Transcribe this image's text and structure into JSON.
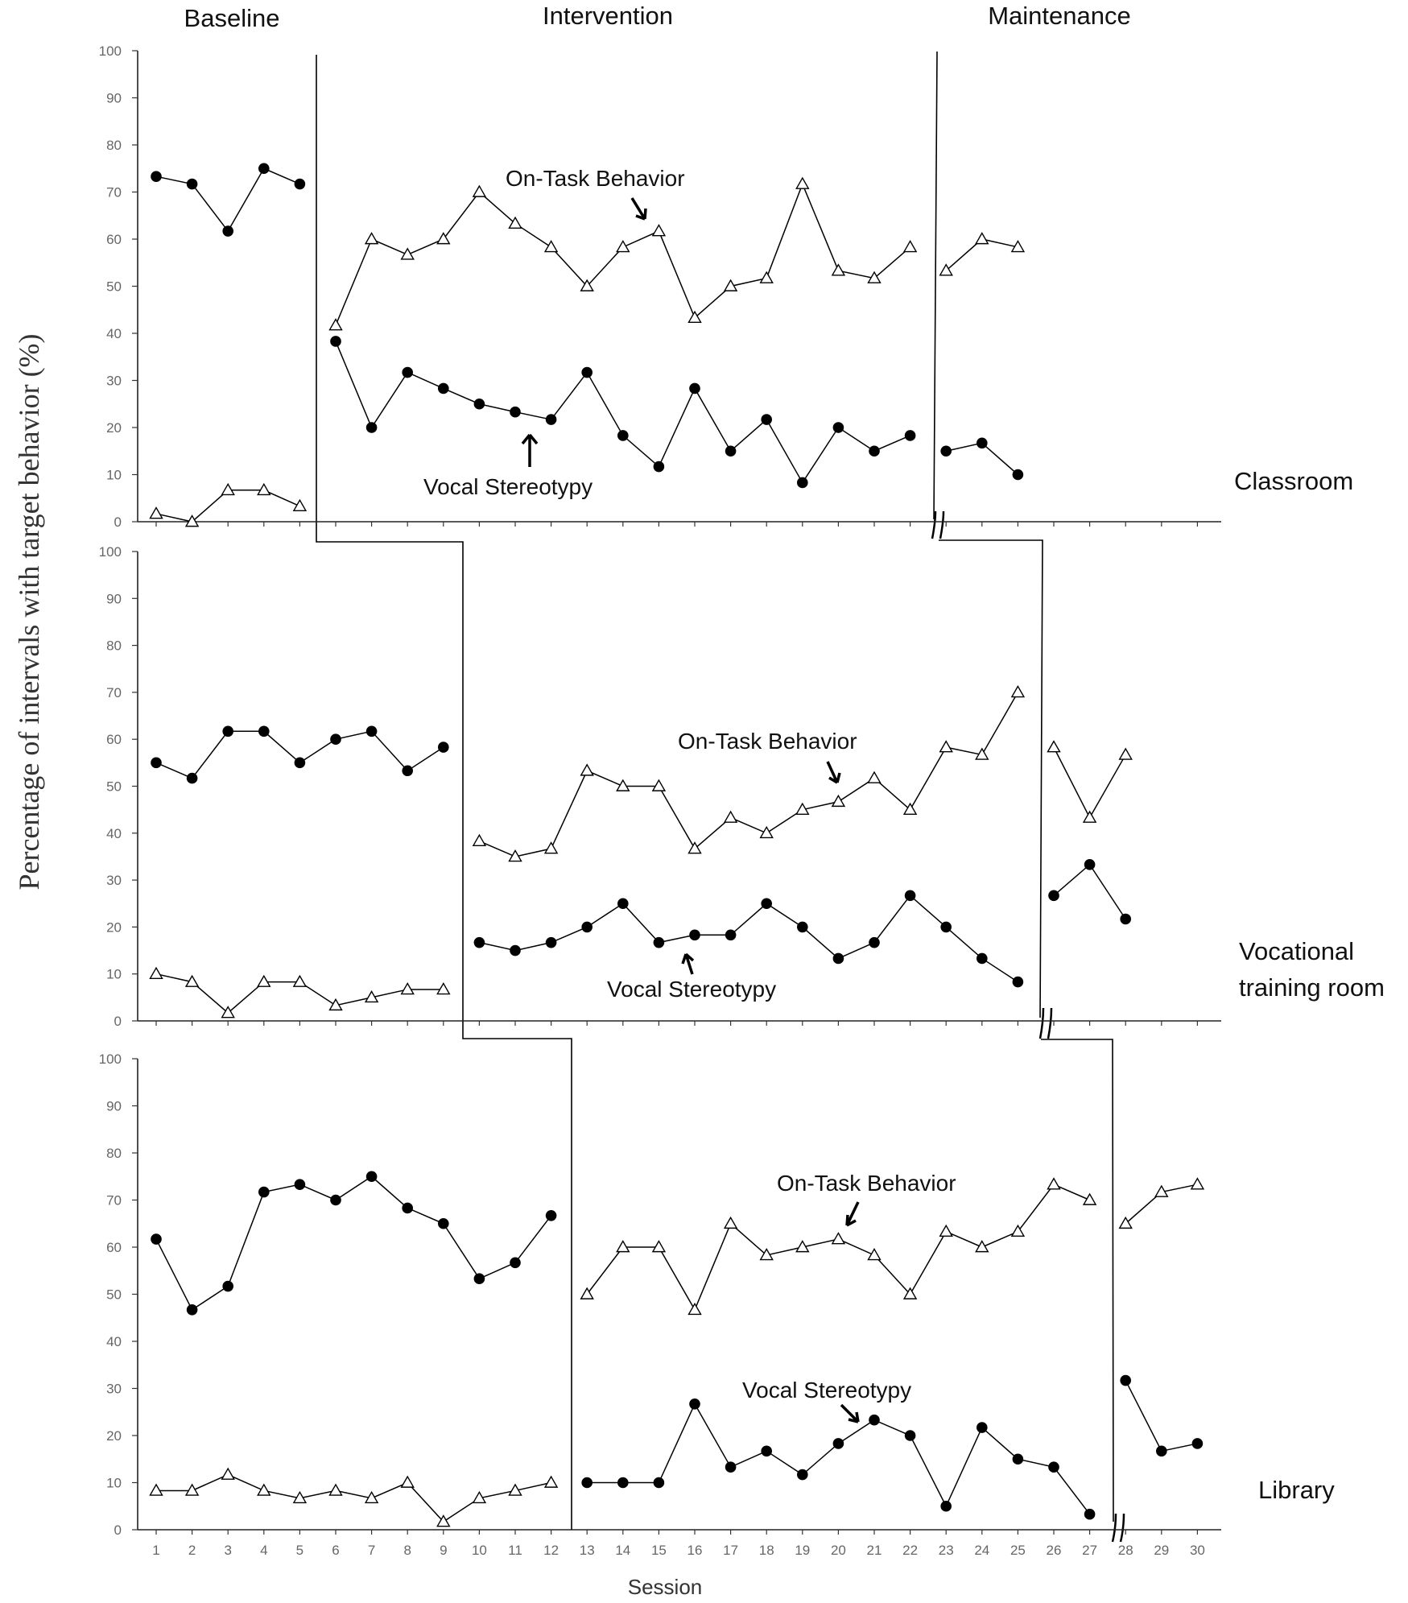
{
  "chart_data": {
    "type": "line",
    "design": "multiple baseline across settings",
    "phase_labels": [
      "Baseline",
      "Intervention",
      "Maintenance"
    ],
    "ylabel": "Percentage of intervals with target behavior (%)",
    "xlabel": "Session",
    "ylim": [
      0,
      100
    ],
    "yticks": [
      "0",
      "10",
      "20",
      "30",
      "40",
      "50",
      "60",
      "70",
      "80",
      "90",
      "100"
    ],
    "xticks": [
      "1",
      "2",
      "3",
      "4",
      "5",
      "6",
      "7",
      "8",
      "9",
      "10",
      "11",
      "12",
      "13",
      "14",
      "15",
      "16",
      "17",
      "18",
      "19",
      "20",
      "21",
      "22",
      "23",
      "24",
      "25",
      "26",
      "27",
      "28",
      "29",
      "30"
    ],
    "panels": [
      {
        "setting": "Classroom",
        "phases": [
          {
            "name": "Baseline",
            "sessions": [
              1,
              5
            ]
          },
          {
            "name": "Intervention",
            "sessions": [
              6,
              22
            ]
          },
          {
            "name": "Maintenance",
            "sessions": [
              23,
              25
            ]
          }
        ],
        "series": [
          {
            "name": "Vocal Stereotypy",
            "marker": "filled-circle",
            "segments": [
              [
                [
                  1,
                  73.3
                ],
                [
                  2,
                  71.7
                ],
                [
                  3,
                  61.7
                ],
                [
                  4,
                  75
                ],
                [
                  5,
                  71.7
                ]
              ],
              [
                [
                  6,
                  38.3
                ],
                [
                  7,
                  20
                ],
                [
                  8,
                  31.7
                ],
                [
                  9,
                  28.3
                ],
                [
                  10,
                  25
                ],
                [
                  11,
                  23.3
                ],
                [
                  12,
                  21.7
                ],
                [
                  13,
                  31.7
                ],
                [
                  14,
                  18.3
                ],
                [
                  15,
                  11.7
                ],
                [
                  16,
                  28.3
                ],
                [
                  17,
                  15
                ],
                [
                  18,
                  21.7
                ],
                [
                  19,
                  8.3
                ],
                [
                  20,
                  20
                ],
                [
                  21,
                  15
                ],
                [
                  22,
                  18.3
                ]
              ],
              [
                [
                  23,
                  15
                ],
                [
                  24,
                  16.7
                ],
                [
                  25,
                  10
                ]
              ]
            ]
          },
          {
            "name": "On-Task Behavior",
            "marker": "open-triangle",
            "segments": [
              [
                [
                  1,
                  1.7
                ],
                [
                  2,
                  0
                ],
                [
                  3,
                  6.7
                ],
                [
                  4,
                  6.7
                ],
                [
                  5,
                  3.3
                ]
              ],
              [
                [
                  6,
                  41.7
                ],
                [
                  7,
                  60
                ],
                [
                  8,
                  56.7
                ],
                [
                  9,
                  60
                ],
                [
                  10,
                  70
                ],
                [
                  11,
                  63.3
                ],
                [
                  12,
                  58.3
                ],
                [
                  13,
                  50
                ],
                [
                  14,
                  58.3
                ],
                [
                  15,
                  61.7
                ],
                [
                  16,
                  43.3
                ],
                [
                  17,
                  50
                ],
                [
                  18,
                  51.7
                ],
                [
                  19,
                  71.7
                ],
                [
                  20,
                  53.3
                ],
                [
                  21,
                  51.7
                ],
                [
                  22,
                  58.3
                ]
              ],
              [
                [
                  23,
                  53.3
                ],
                [
                  24,
                  60
                ],
                [
                  25,
                  58.3
                ]
              ]
            ]
          }
        ],
        "annotations": {
          "on_task": "On-Task Behavior",
          "vocal": "Vocal Stereotypy"
        }
      },
      {
        "setting": "Vocational training room",
        "setting_lines": [
          "Vocational",
          "training room"
        ],
        "phases": [
          {
            "name": "Baseline",
            "sessions": [
              1,
              9
            ]
          },
          {
            "name": "Intervention",
            "sessions": [
              10,
              25
            ]
          },
          {
            "name": "Maintenance",
            "sessions": [
              26,
              28
            ]
          }
        ],
        "series": [
          {
            "name": "Vocal Stereotypy",
            "marker": "filled-circle",
            "segments": [
              [
                [
                  1,
                  55
                ],
                [
                  2,
                  51.7
                ],
                [
                  3,
                  61.7
                ],
                [
                  4,
                  61.7
                ],
                [
                  5,
                  55
                ],
                [
                  6,
                  60
                ],
                [
                  7,
                  61.7
                ],
                [
                  8,
                  53.3
                ],
                [
                  9,
                  58.3
                ]
              ],
              [
                [
                  10,
                  16.7
                ],
                [
                  11,
                  15
                ],
                [
                  12,
                  16.7
                ],
                [
                  13,
                  20
                ],
                [
                  14,
                  25
                ],
                [
                  15,
                  16.7
                ],
                [
                  16,
                  18.3
                ],
                [
                  17,
                  18.3
                ],
                [
                  18,
                  25
                ],
                [
                  19,
                  20
                ],
                [
                  20,
                  13.3
                ],
                [
                  21,
                  16.7
                ],
                [
                  22,
                  26.7
                ],
                [
                  23,
                  20
                ],
                [
                  24,
                  13.3
                ],
                [
                  25,
                  8.3
                ]
              ],
              [
                [
                  26,
                  26.7
                ],
                [
                  27,
                  33.3
                ],
                [
                  28,
                  21.7
                ]
              ]
            ]
          },
          {
            "name": "On-Task Behavior",
            "marker": "open-triangle",
            "segments": [
              [
                [
                  1,
                  10
                ],
                [
                  2,
                  8.3
                ],
                [
                  3,
                  1.7
                ],
                [
                  4,
                  8.3
                ],
                [
                  5,
                  8.3
                ],
                [
                  6,
                  3.3
                ],
                [
                  7,
                  5
                ],
                [
                  8,
                  6.7
                ],
                [
                  9,
                  6.7
                ]
              ],
              [
                [
                  10,
                  38.3
                ],
                [
                  11,
                  35
                ],
                [
                  12,
                  36.7
                ],
                [
                  13,
                  53.3
                ],
                [
                  14,
                  50
                ],
                [
                  15,
                  50
                ],
                [
                  16,
                  36.7
                ],
                [
                  17,
                  43.3
                ],
                [
                  18,
                  40
                ],
                [
                  19,
                  45
                ],
                [
                  20,
                  46.7
                ],
                [
                  21,
                  51.7
                ],
                [
                  22,
                  45
                ],
                [
                  23,
                  58.3
                ],
                [
                  24,
                  56.7
                ],
                [
                  25,
                  70
                ]
              ],
              [
                [
                  26,
                  58.3
                ],
                [
                  27,
                  43.3
                ],
                [
                  28,
                  56.7
                ]
              ]
            ]
          }
        ],
        "annotations": {
          "on_task": "On-Task Behavior",
          "vocal": "Vocal Stereotypy"
        }
      },
      {
        "setting": "Library",
        "phases": [
          {
            "name": "Baseline",
            "sessions": [
              1,
              12
            ]
          },
          {
            "name": "Intervention",
            "sessions": [
              13,
              27
            ]
          },
          {
            "name": "Maintenance",
            "sessions": [
              28,
              30
            ]
          }
        ],
        "series": [
          {
            "name": "Vocal Stereotypy",
            "marker": "filled-circle",
            "segments": [
              [
                [
                  1,
                  61.7
                ],
                [
                  2,
                  46.7
                ],
                [
                  3,
                  51.7
                ],
                [
                  4,
                  71.7
                ],
                [
                  5,
                  73.3
                ],
                [
                  6,
                  70
                ],
                [
                  7,
                  75
                ],
                [
                  8,
                  68.3
                ],
                [
                  9,
                  65
                ],
                [
                  10,
                  53.3
                ],
                [
                  11,
                  56.7
                ],
                [
                  12,
                  66.7
                ]
              ],
              [
                [
                  13,
                  10
                ],
                [
                  14,
                  10
                ],
                [
                  15,
                  10
                ],
                [
                  16,
                  26.7
                ],
                [
                  17,
                  13.3
                ],
                [
                  18,
                  16.7
                ],
                [
                  19,
                  11.7
                ],
                [
                  20,
                  18.3
                ],
                [
                  21,
                  23.3
                ],
                [
                  22,
                  20
                ],
                [
                  23,
                  5
                ],
                [
                  24,
                  21.7
                ],
                [
                  25,
                  15
                ],
                [
                  26,
                  13.3
                ],
                [
                  27,
                  3.3
                ]
              ],
              [
                [
                  28,
                  31.7
                ],
                [
                  29,
                  16.7
                ],
                [
                  30,
                  18.3
                ]
              ]
            ]
          },
          {
            "name": "On-Task Behavior",
            "marker": "open-triangle",
            "segments": [
              [
                [
                  1,
                  8.3
                ],
                [
                  2,
                  8.3
                ],
                [
                  3,
                  11.7
                ],
                [
                  4,
                  8.3
                ],
                [
                  5,
                  6.7
                ],
                [
                  6,
                  8.3
                ],
                [
                  7,
                  6.7
                ],
                [
                  8,
                  10
                ],
                [
                  9,
                  1.7
                ],
                [
                  10,
                  6.7
                ],
                [
                  11,
                  8.3
                ],
                [
                  12,
                  10
                ]
              ],
              [
                [
                  13,
                  50
                ],
                [
                  14,
                  60
                ],
                [
                  15,
                  60
                ],
                [
                  16,
                  46.7
                ],
                [
                  17,
                  65
                ],
                [
                  18,
                  58.3
                ],
                [
                  19,
                  60
                ],
                [
                  20,
                  61.7
                ],
                [
                  21,
                  58.3
                ],
                [
                  22,
                  50
                ],
                [
                  23,
                  63.3
                ],
                [
                  24,
                  60
                ],
                [
                  25,
                  63.3
                ],
                [
                  26,
                  73.3
                ],
                [
                  27,
                  70
                ]
              ],
              [
                [
                  28,
                  65
                ],
                [
                  29,
                  71.7
                ],
                [
                  30,
                  73.3
                ]
              ]
            ]
          }
        ],
        "annotations": {
          "on_task": "On-Task Behavior",
          "vocal": "Vocal Stereotypy"
        }
      }
    ]
  }
}
